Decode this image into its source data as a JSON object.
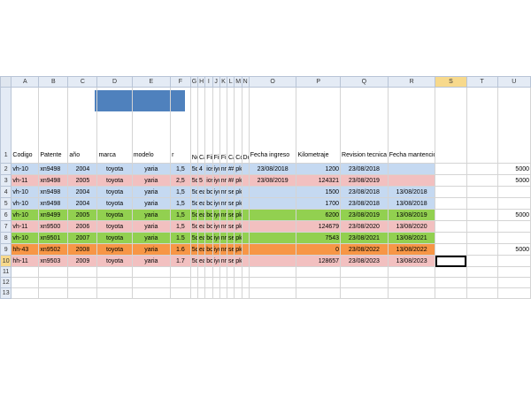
{
  "columns": [
    "A",
    "B",
    "C",
    "D",
    "E",
    "F",
    "G",
    "H",
    "I",
    "J",
    "K",
    "L",
    "M",
    "N",
    "O",
    "P",
    "Q",
    "R",
    "S",
    "T",
    "U"
  ],
  "rows": [
    {
      "num": "1",
      "cells": [
        "Codigo",
        "Patente",
        "año",
        "marca",
        "modelo",
        "r",
        "Neum.",
        "Caupt",
        "Fiitr",
        "Fiitr",
        "Fiitr",
        "Caprc",
        "Coor.",
        "Dcsrc",
        "Fecha ingreso",
        "Kilometraje",
        "Revision tecnica",
        "Fecha mantencion o recorrido diario",
        "",
        "",
        ""
      ]
    },
    {
      "num": "2",
      "cells": [
        "vh-10",
        "xn9498",
        "2004",
        "toyota",
        "yaria",
        "1,5",
        "5dy",
        "4",
        "iosl",
        "iyc",
        "nrr",
        "##",
        "pk3",
        "",
        "23/08/2018",
        "1200",
        "23/08/2018",
        "",
        "",
        "",
        "5000"
      ]
    },
    {
      "num": "3",
      "cells": [
        "vh-11",
        "xn9498",
        "2005",
        "toyota",
        "yaria",
        "2,5",
        "5dy",
        "5",
        "iosl",
        "iyc",
        "nrr",
        "##",
        "pk4",
        "",
        "23/08/2019",
        "124321",
        "23/08/2019",
        "",
        "",
        "",
        "5000"
      ]
    },
    {
      "num": "4",
      "cells": [
        "vh-10",
        "xn9498",
        "2004",
        "toyota",
        "yaria",
        "1,5",
        "5dy",
        "ea",
        "bosl",
        "iyc",
        "nre",
        "se",
        "pk3",
        "",
        "",
        "1500",
        "23/08/2018",
        "13/08/2018",
        "",
        "",
        ""
      ]
    },
    {
      "num": "5",
      "cells": [
        "vh-10",
        "xn9498",
        "2004",
        "toyota",
        "yaria",
        "1,5",
        "5dy",
        "ea",
        "bosl",
        "iyc",
        "nre",
        "se",
        "pk3",
        "",
        "",
        "1700",
        "23/08/2018",
        "13/08/2018",
        "",
        "",
        ""
      ]
    },
    {
      "num": "6",
      "cells": [
        "vh-10",
        "xn9499",
        "2005",
        "toyota",
        "yaria",
        "1,5",
        "5dy",
        "ea",
        "bosl",
        "iyc",
        "nre",
        "se",
        "pk4",
        "",
        "",
        "6200",
        "23/08/2019",
        "13/08/2019",
        "",
        "",
        "5000"
      ]
    },
    {
      "num": "7",
      "cells": [
        "vh-11",
        "xn9500",
        "2006",
        "toyota",
        "yaria",
        "1,5",
        "5dy",
        "ea",
        "bosl",
        "iyc",
        "nre",
        "se",
        "pk5",
        "",
        "",
        "124679",
        "23/08/2020",
        "13/08/2020",
        "",
        "",
        ""
      ]
    },
    {
      "num": "8",
      "cells": [
        "vh-10",
        "xn9501",
        "2007",
        "toyota",
        "yaria",
        "1.5",
        "5dy",
        "ea",
        "bosl",
        "iyc",
        "nre",
        "se",
        "pk6",
        "",
        "",
        "7543",
        "23/08/2021",
        "13/08/2021",
        "",
        "",
        ""
      ]
    },
    {
      "num": "9",
      "cells": [
        "hh-43",
        "xn9502",
        "2008",
        "toyota",
        "yaria",
        "1.6",
        "5dy",
        "ea",
        "bosl",
        "iyc",
        "nre",
        "se",
        "pk7",
        "",
        "",
        "0",
        "23/08/2022",
        "13/08/2022",
        "",
        "",
        "5000"
      ]
    },
    {
      "num": "10",
      "cells": [
        "hh-11",
        "xn9503",
        "2009",
        "toyota",
        "yaria",
        "1.7",
        "5dy",
        "ea",
        "bosl",
        "iyc",
        "nre",
        "se",
        "pk8",
        "",
        "",
        "128657",
        "23/08/2023",
        "13/08/2023",
        "",
        "",
        ""
      ]
    },
    {
      "num": "11",
      "cells": [
        "",
        "",
        "",
        "",
        "",
        "",
        "",
        "",
        "",
        "",
        "",
        "",
        "",
        "",
        "",
        "",
        "",
        "",
        "",
        "",
        ""
      ]
    },
    {
      "num": "12",
      "cells": [
        "",
        "",
        "",
        "",
        "",
        "",
        "",
        "",
        "",
        "",
        "",
        "",
        "",
        "",
        "",
        "",
        "",
        "",
        "",
        "",
        ""
      ]
    },
    {
      "num": "13",
      "cells": [
        "",
        "",
        "",
        "",
        "",
        "",
        "",
        "",
        "",
        "",
        "",
        "",
        "",
        "",
        "",
        "",
        "",
        "",
        "",
        "",
        ""
      ]
    }
  ],
  "row_fills": {
    "2": "#c5d9f1",
    "3": "#f2c0c0",
    "4": "#c5d9f1",
    "5": "#c5d9f1",
    "6": "#92d050",
    "7": "#f2c0c0",
    "8": "#92d050",
    "9": "#f79646",
    "10": "#f2c0c0"
  },
  "colors": {
    "header_block": "#4f81bd",
    "selection_highlight": "#f7d98c"
  },
  "selected_cell": "S10"
}
